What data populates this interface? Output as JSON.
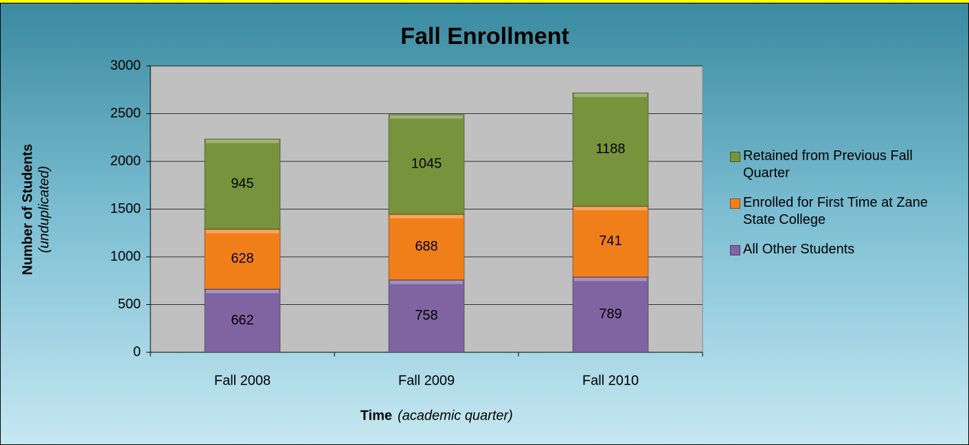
{
  "chart_data": {
    "type": "stacked_bar",
    "title": "Fall Enrollment",
    "y_axis_title": "Number of Students",
    "y_axis_subtitle": "(unduplicated)",
    "x_axis_title": "Time",
    "x_axis_subtitle": "(academic quarter)",
    "categories": [
      "Fall 2008",
      "Fall 2009",
      "Fall 2010"
    ],
    "series": [
      {
        "name": "All Other Students",
        "color": "#8064a2",
        "values": [
          662,
          758,
          789
        ]
      },
      {
        "name": "Enrolled for First Time at Zane State College",
        "color": "#f07f1a",
        "values": [
          628,
          688,
          741
        ]
      },
      {
        "name": "Retained from Previous Fall Quarter",
        "color": "#77933c",
        "values": [
          945,
          1045,
          1188
        ]
      }
    ],
    "ylim": [
      0,
      3000
    ],
    "yticks": [
      0,
      500,
      1000,
      1500,
      2000,
      2500,
      3000
    ],
    "grid": true,
    "legend": "right"
  }
}
